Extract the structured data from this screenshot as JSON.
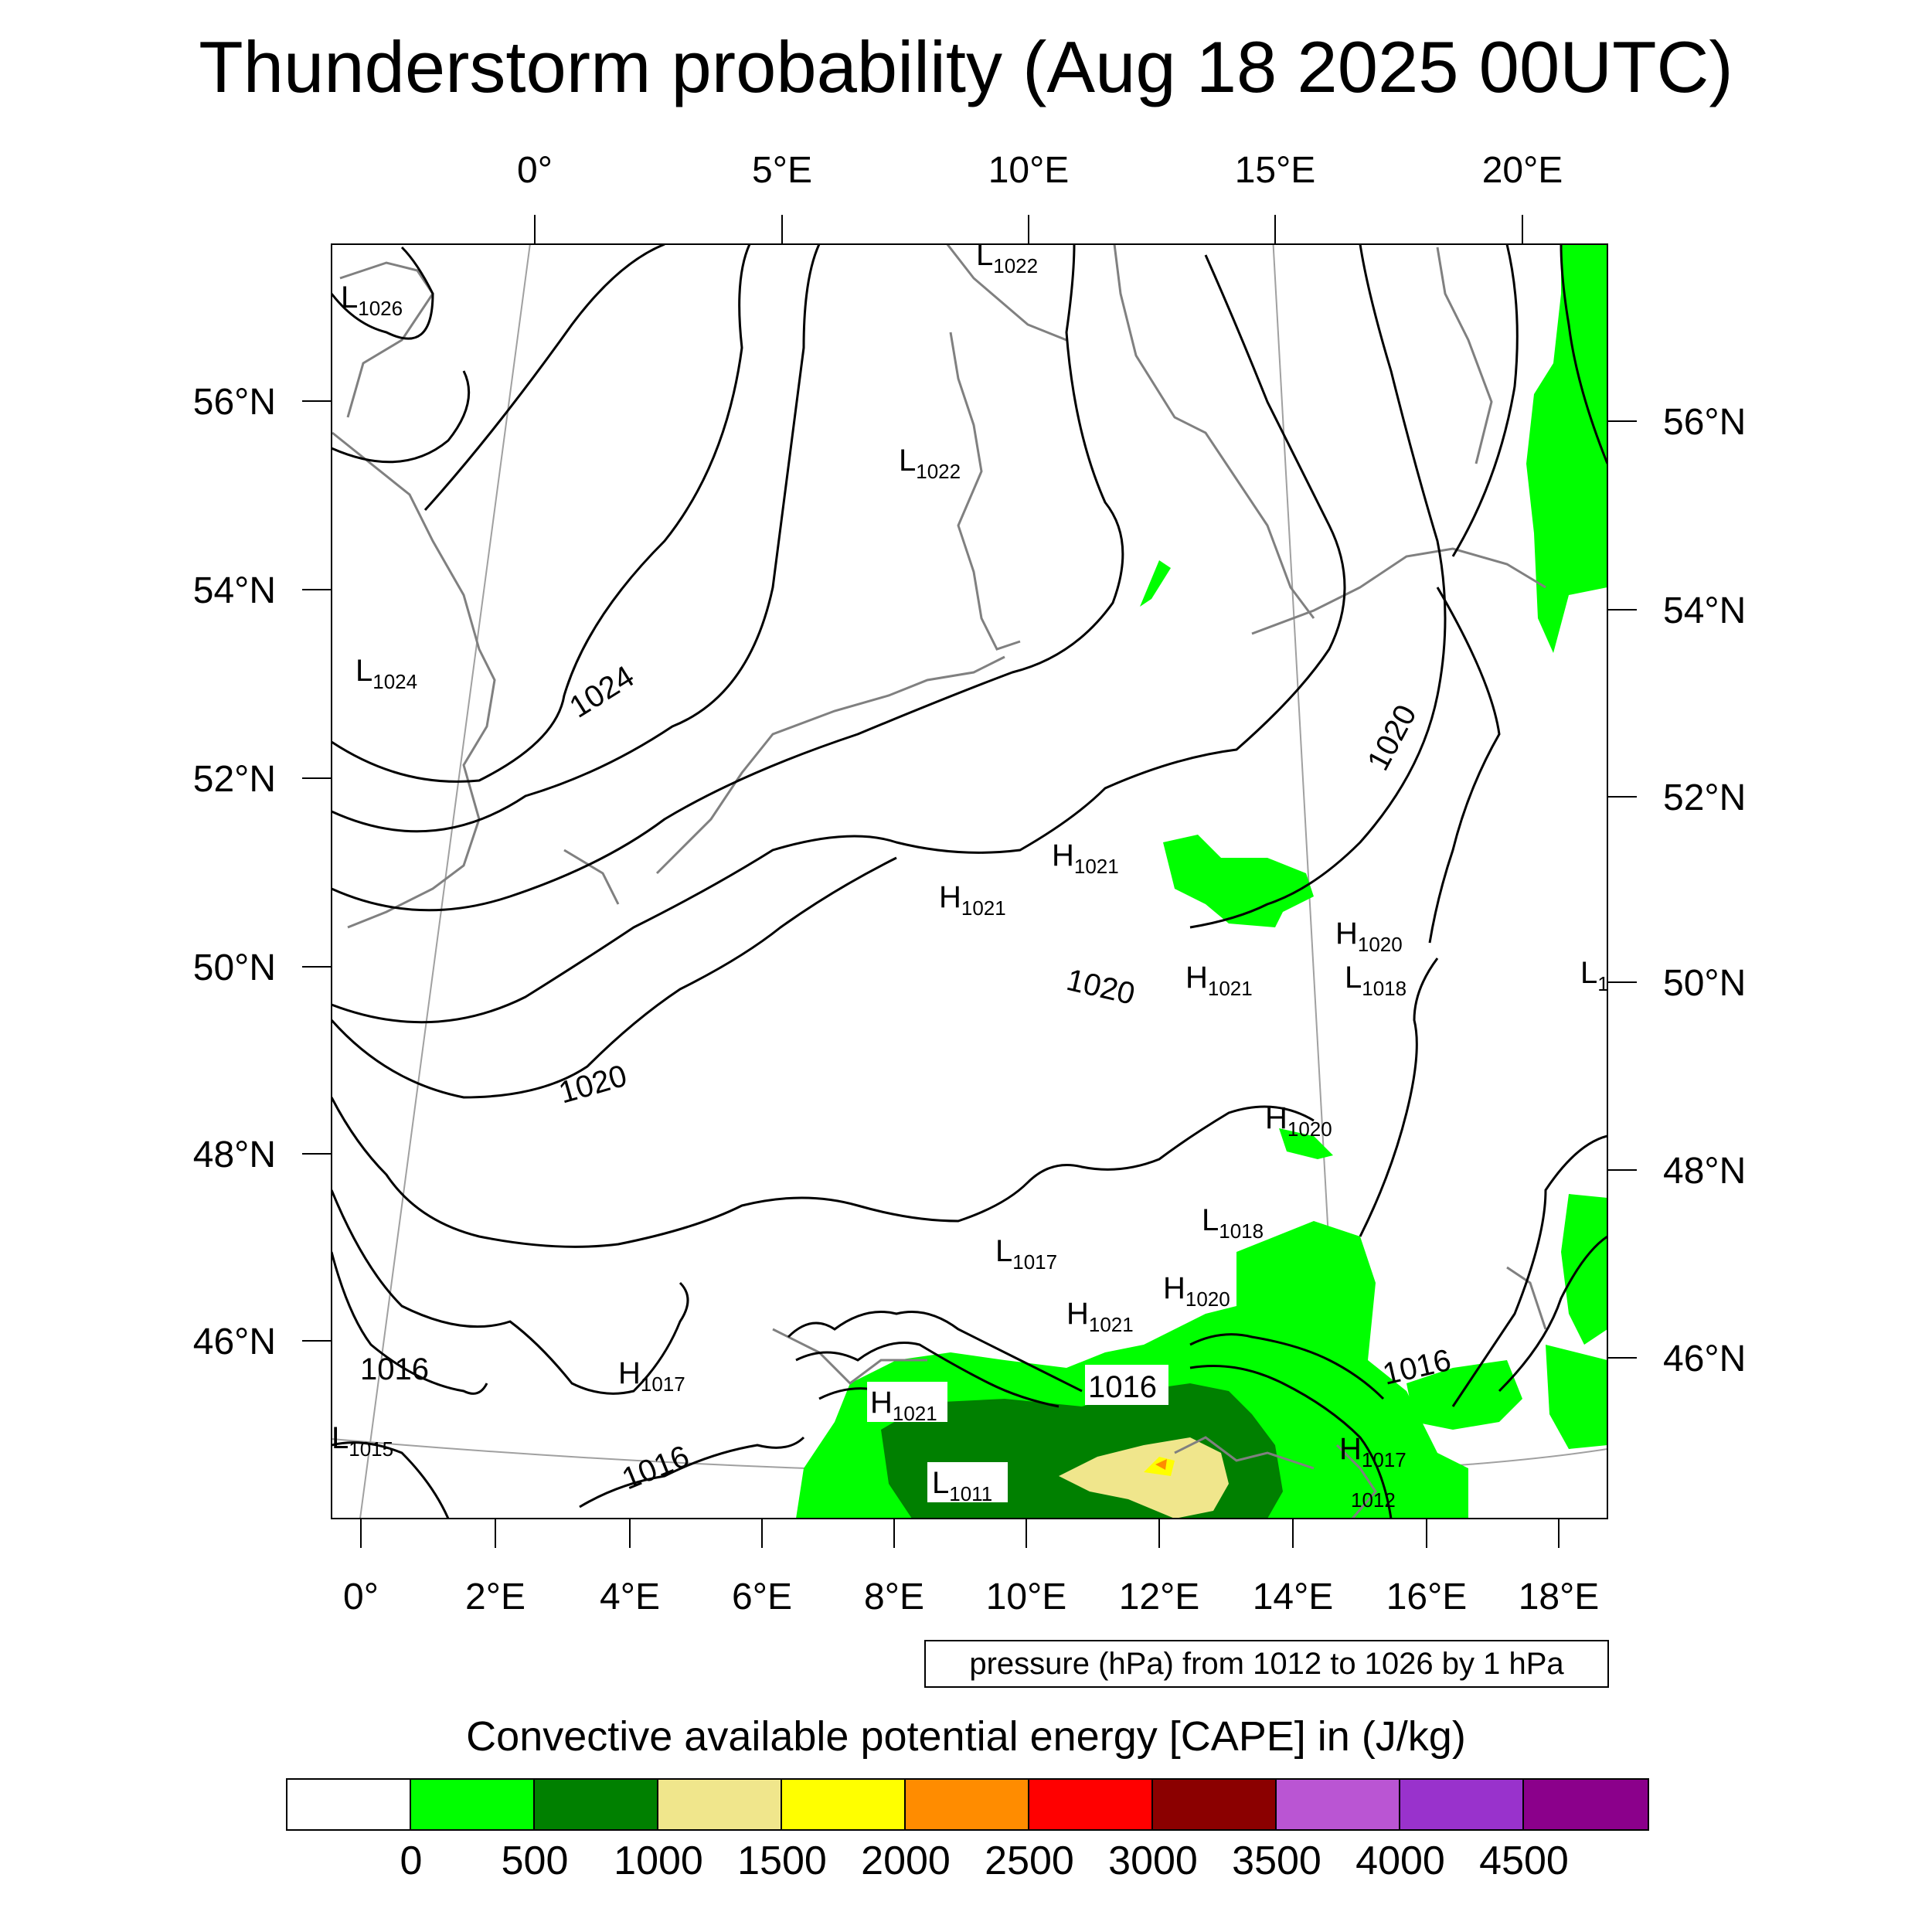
{
  "title": "Thunderstorm probability (Aug 18 2025 00UTC)",
  "map": {
    "top_lon_labels": [
      "0°",
      "5°E",
      "10°E",
      "15°E",
      "20°E"
    ],
    "bottom_lon_labels": [
      "0°",
      "2°E",
      "4°E",
      "6°E",
      "8°E",
      "10°E",
      "12°E",
      "14°E",
      "16°E",
      "18°E"
    ],
    "left_lat_labels": [
      "56°N",
      "54°N",
      "52°N",
      "50°N",
      "48°N",
      "46°N"
    ],
    "right_lat_labels": [
      "56°N",
      "54°N",
      "52°N",
      "50°N",
      "48°N",
      "46°N"
    ],
    "pressure_centers": [
      {
        "type": "L",
        "value": "1026"
      },
      {
        "type": "L",
        "value": "1022"
      },
      {
        "type": "L",
        "value": "1022"
      },
      {
        "type": "L",
        "value": "1024"
      },
      {
        "type": "H",
        "value": "1021"
      },
      {
        "type": "H",
        "value": "1021"
      },
      {
        "type": "H",
        "value": "1020"
      },
      {
        "type": "L",
        "value": "1018"
      },
      {
        "type": "H",
        "value": "1021"
      },
      {
        "type": "H",
        "value": "1020"
      },
      {
        "type": "L",
        "value": "1018"
      },
      {
        "type": "L",
        "value": "1017"
      },
      {
        "type": "H",
        "value": "1020"
      },
      {
        "type": "H",
        "value": "1021"
      },
      {
        "type": "H",
        "value": "1017"
      },
      {
        "type": "H",
        "value": "1021"
      },
      {
        "type": "L",
        "value": "1011"
      },
      {
        "type": "L",
        "value": "1015"
      },
      {
        "type": "H",
        "value": "1017"
      },
      {
        "type": "L",
        "value": "1012"
      },
      {
        "type": "L",
        "value": "1"
      }
    ],
    "contour_labels": [
      "1024",
      "1020",
      "1020",
      "1020",
      "1016",
      "1016",
      "1016",
      "1016"
    ],
    "colors": {
      "contour": "#000000",
      "coastline": "#808080",
      "graticule": "#a0a0a0"
    }
  },
  "pressure_note": "pressure (hPa) from 1012 to 1026 by 1 hPa",
  "colorbar": {
    "title": "Convective available potential energy [CAPE] in (J/kg)",
    "colors": [
      "#ffffff",
      "#00ff00",
      "#008000",
      "#f0e68c",
      "#ffff00",
      "#ff8c00",
      "#ff0000",
      "#8b0000",
      "#ba55d3",
      "#9932cc",
      "#8b008b"
    ],
    "labels": [
      "0",
      "500",
      "1000",
      "1500",
      "2000",
      "2500",
      "3000",
      "3500",
      "4000",
      "4500"
    ]
  }
}
